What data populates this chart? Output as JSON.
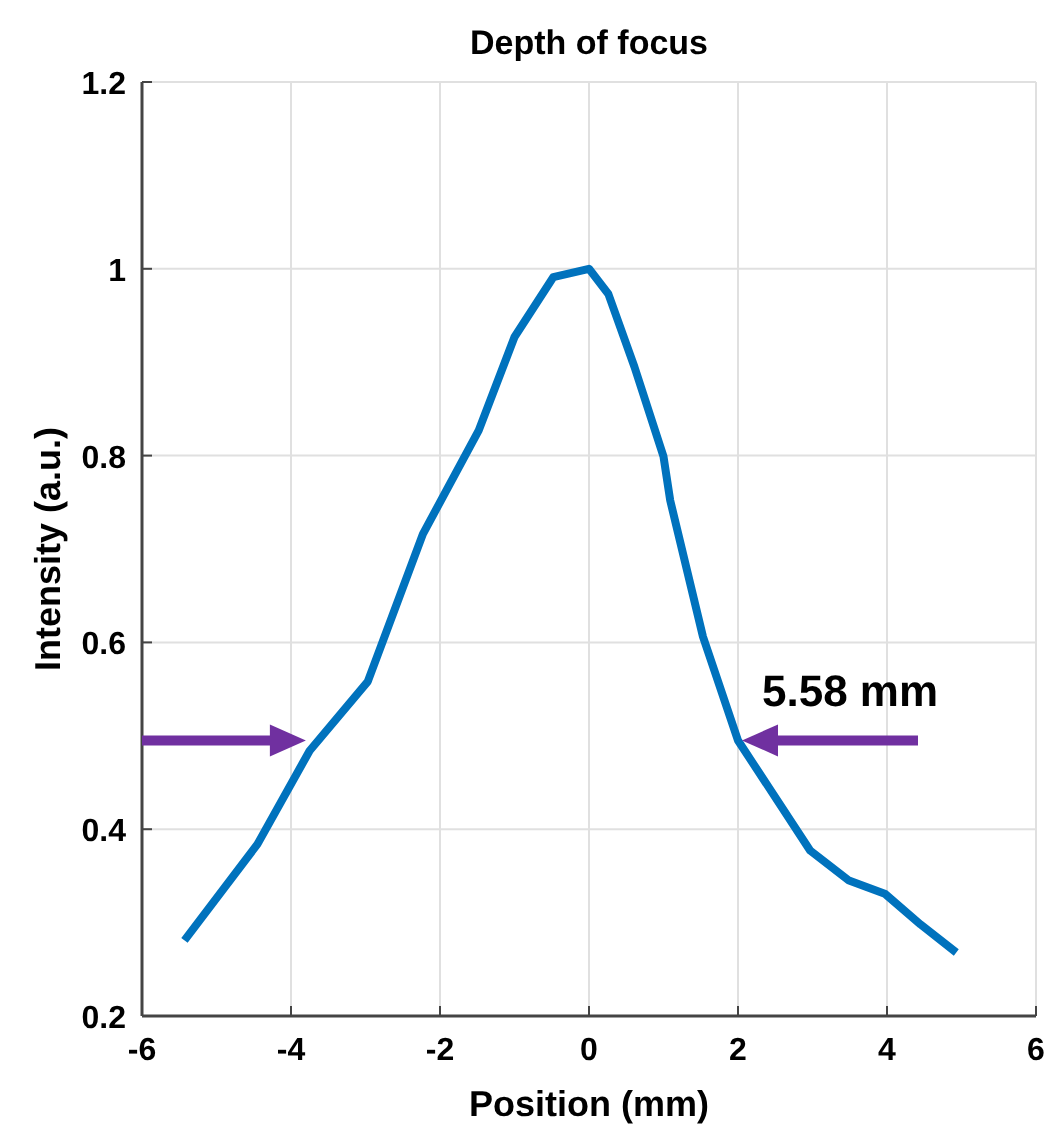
{
  "chart_data": {
    "type": "line",
    "title": "Depth of focus",
    "xlabel": "Position (mm)",
    "ylabel": "Intensity (a.u.)",
    "x": [
      -5.43,
      -4.45,
      -3.75,
      -2.97,
      -2.23,
      -1.48,
      -1.0,
      -0.48,
      0,
      0.26,
      0.61,
      1.0,
      1.09,
      1.53,
      2.0,
      2.97,
      3.49,
      3.97,
      4.45,
      4.93
    ],
    "series": [
      {
        "color": "#0072bd",
        "values": [
          0.281,
          0.384,
          0.484,
          0.558,
          0.716,
          0.827,
          0.927,
          0.991,
          1.0,
          0.973,
          0.895,
          0.799,
          0.752,
          0.606,
          0.495,
          0.377,
          0.345,
          0.331,
          0.298,
          0.268
        ]
      }
    ],
    "xlim": [
      -6,
      6
    ],
    "xticks": [
      -6,
      -4,
      -2,
      0,
      2,
      4,
      6
    ],
    "ylim": [
      0.2,
      1.2
    ],
    "yticks": [
      0.2,
      0.4,
      0.6,
      0.8,
      1,
      1.2
    ],
    "grid": true,
    "marker": "none",
    "line_style": "solid",
    "annotations": [
      {
        "text": "5.58 mm",
        "x": 2,
        "y": 0.495
      }
    ]
  }
}
